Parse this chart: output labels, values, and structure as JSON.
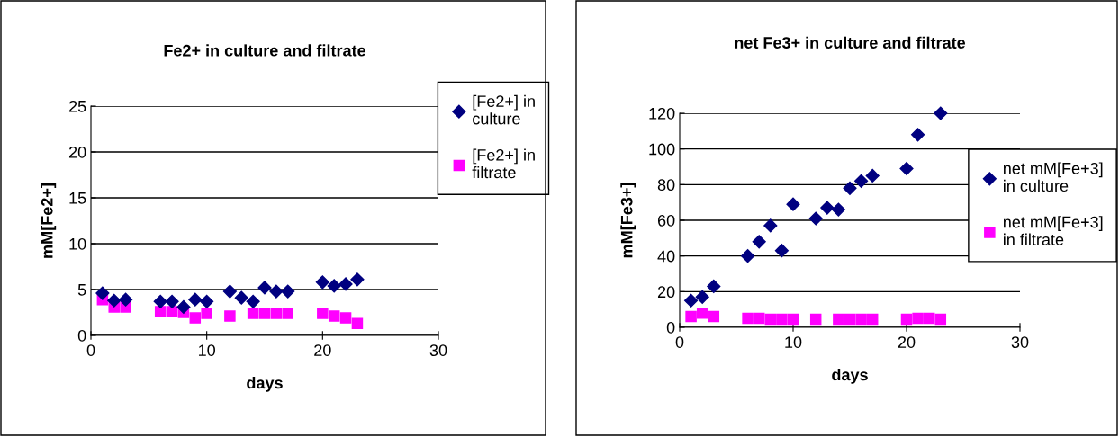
{
  "chart_data": [
    {
      "type": "scatter",
      "title": "Fe2+ in culture and filtrate",
      "xlabel": "days",
      "ylabel": "mM[Fe2+]",
      "xlim": [
        0,
        30
      ],
      "xticks": [
        0,
        10,
        20,
        30
      ],
      "ylim": [
        0,
        25
      ],
      "yticks": [
        0,
        5,
        10,
        15,
        20,
        25
      ],
      "grid": "y",
      "legend": "right",
      "series": [
        {
          "name": "[Fe2+] in culture",
          "color": "#000080",
          "marker": "diamond",
          "x": [
            1,
            2,
            3,
            6,
            7,
            8,
            9,
            10,
            12,
            13,
            14,
            15,
            16,
            17,
            20,
            21,
            22,
            23
          ],
          "values": [
            4.6,
            3.8,
            3.9,
            3.7,
            3.7,
            3.1,
            3.9,
            3.7,
            4.8,
            4.1,
            3.7,
            5.2,
            4.8,
            4.8,
            5.8,
            5.4,
            5.6,
            6.1
          ]
        },
        {
          "name": "[Fe2+] in filtrate",
          "color": "#ff00ff",
          "marker": "square",
          "x": [
            1,
            2,
            3,
            6,
            7,
            8,
            9,
            10,
            12,
            14,
            15,
            16,
            17,
            20,
            21,
            22,
            23
          ],
          "values": [
            3.9,
            3.1,
            3.1,
            2.6,
            2.6,
            2.5,
            1.9,
            2.4,
            2.1,
            2.4,
            2.4,
            2.4,
            2.4,
            2.4,
            2.1,
            1.9,
            1.3
          ]
        }
      ]
    },
    {
      "type": "scatter",
      "title": "net Fe3+ in culture and filtrate",
      "xlabel": "days",
      "ylabel": "mM[Fe3+]",
      "xlim": [
        0,
        30
      ],
      "xticks": [
        0,
        10,
        20,
        30
      ],
      "ylim": [
        0,
        120
      ],
      "yticks": [
        0,
        20,
        40,
        60,
        80,
        100,
        120
      ],
      "grid": "y",
      "legend": "right",
      "series": [
        {
          "name": "net mM[Fe+3] in culture",
          "color": "#000080",
          "marker": "diamond",
          "x": [
            1,
            2,
            3,
            6,
            7,
            8,
            9,
            10,
            12,
            13,
            14,
            15,
            16,
            17,
            20,
            21,
            23
          ],
          "values": [
            15,
            17,
            23,
            40,
            48,
            57,
            43,
            69,
            61,
            67,
            66,
            78,
            82,
            85,
            89,
            108,
            120
          ]
        },
        {
          "name": "net mM[Fe+3] in filtrate",
          "color": "#ff00ff",
          "marker": "square",
          "x": [
            1,
            2,
            3,
            6,
            7,
            8,
            9,
            10,
            12,
            14,
            15,
            16,
            17,
            20,
            21,
            22,
            23
          ],
          "values": [
            6,
            8,
            6,
            5,
            5,
            4.5,
            4.5,
            4.5,
            4.5,
            4.5,
            4.5,
            4.5,
            4.5,
            4.5,
            5,
            5,
            4.5
          ]
        }
      ]
    }
  ]
}
